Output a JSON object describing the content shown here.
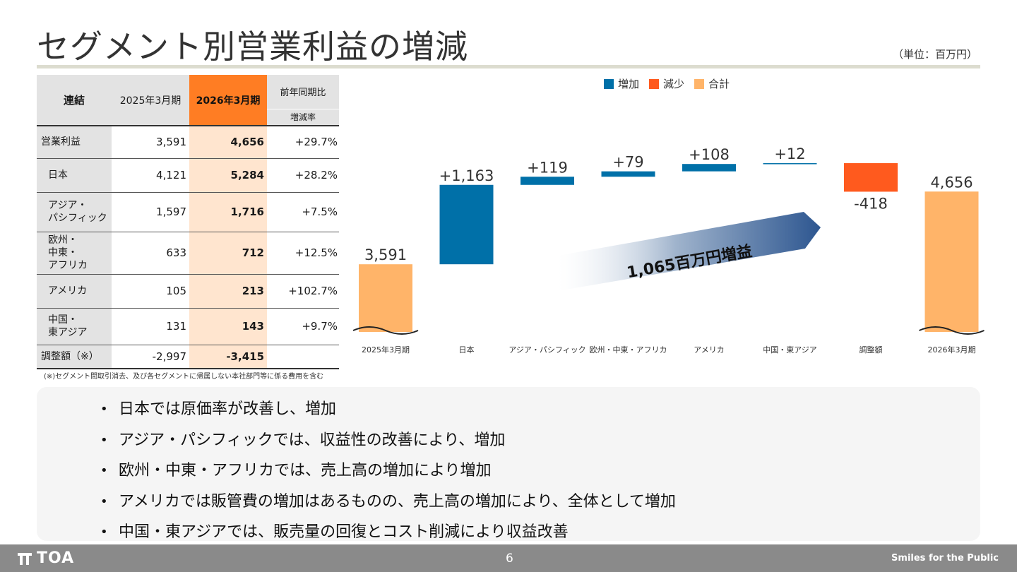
{
  "header": {
    "title": "セグメント別営業利益の増減",
    "unit": "（単位：百万円）"
  },
  "table": {
    "col_label": "連結",
    "col_prev": "2025年3月期",
    "col_cur": "2026年3月期",
    "col_cmp": "前年同期比",
    "col_cmp_sub": "増減率",
    "rows": [
      {
        "label": "営業利益",
        "prev": "3,591",
        "cur": "4,656",
        "pct": "+29.7%"
      },
      {
        "label": "日本",
        "prev": "4,121",
        "cur": "5,284",
        "pct": "+28.2%"
      },
      {
        "label": "アジア・\nパシフィック",
        "prev": "1,597",
        "cur": "1,716",
        "pct": "+7.5%"
      },
      {
        "label": "欧州・\n中東・\nアフリカ",
        "prev": "633",
        "cur": "712",
        "pct": "+12.5%"
      },
      {
        "label": "アメリカ",
        "prev": "105",
        "cur": "213",
        "pct": "+102.7%"
      },
      {
        "label": "中国・\n東アジア",
        "prev": "131",
        "cur": "143",
        "pct": "+9.7%"
      },
      {
        "label": "調整額（※）",
        "prev": "-2,997",
        "cur": "-3,415",
        "pct": ""
      }
    ],
    "footnote": "(※)セグメント間取引消去、及び各セグメントに帰属しない本社部門等に係る費用を含む"
  },
  "chart_data": {
    "type": "bar",
    "subtype": "waterfall",
    "categories": [
      "2025年3月期",
      "日本",
      "アジア・パシフィック",
      "欧州・中東・アフリカ",
      "アメリカ",
      "中国・東アジア",
      "調整額",
      "2026年3月期"
    ],
    "values": [
      3591,
      1163,
      119,
      79,
      108,
      12,
      -418,
      4656
    ],
    "kinds": [
      "total",
      "increase",
      "increase",
      "increase",
      "increase",
      "increase",
      "decrease",
      "total"
    ],
    "labels": [
      "3,591",
      "+1,163",
      "+119",
      "+79",
      "+108",
      "+12",
      "-418",
      "4,656"
    ],
    "legend": [
      "増加",
      "減少",
      "合計"
    ],
    "legend_position": "top",
    "colors": {
      "increase": "#0070a8",
      "decrease": "#ff5a1e",
      "total": "#ffb469"
    },
    "annotation": "1,065百万円増益",
    "axis_break": true
  },
  "comments": [
    "日本では原価率が改善し、増加",
    "アジア・パシフィックでは、収益性の改善により、増加",
    "欧州・中東・アフリカでは、売上高の増加により増加",
    "アメリカでは販管費の増加はあるものの、売上高の増加により、全体として増加",
    "中国・東アジアでは、販売量の回復とコスト削減により収益改善"
  ],
  "footer": {
    "logo_text": "TOA",
    "page_number": "6",
    "slogan": "Smiles for the Public"
  }
}
